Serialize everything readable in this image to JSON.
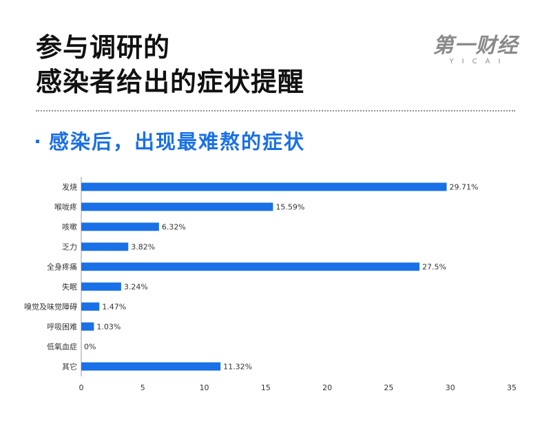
{
  "header": {
    "title_line1": "参与调研的",
    "title_line2": "感染者给出的症状提醒"
  },
  "logo": {
    "main": "第一财经",
    "sub": "YICAI"
  },
  "subtitle": "感染后，出现最难熬的症状",
  "colors": {
    "bar": "#1a70e6",
    "title": "#111111",
    "accent": "#1a70e6",
    "axis": "#333333"
  },
  "chart_data": {
    "type": "bar",
    "orientation": "horizontal",
    "categories": [
      "发烧",
      "喉咙疼",
      "咳嗽",
      "乏力",
      "全身疼痛",
      "失眠",
      "嗅觉及味觉障碍",
      "呼吸困难",
      "低氧血症",
      "其它"
    ],
    "values": [
      29.71,
      15.59,
      6.32,
      3.82,
      27.5,
      3.24,
      1.47,
      1.03,
      0,
      11.32
    ],
    "value_labels": [
      "29.71%",
      "15.59%",
      "6.32%",
      "3.82%",
      "27.5%",
      "3.24%",
      "1.47%",
      "1.03%",
      "0%",
      "11.32%"
    ],
    "xticks": [
      "0",
      "5",
      "10",
      "15",
      "20",
      "25",
      "30",
      "35"
    ],
    "xlim": [
      0,
      35
    ],
    "grid": false,
    "legend": "none"
  }
}
